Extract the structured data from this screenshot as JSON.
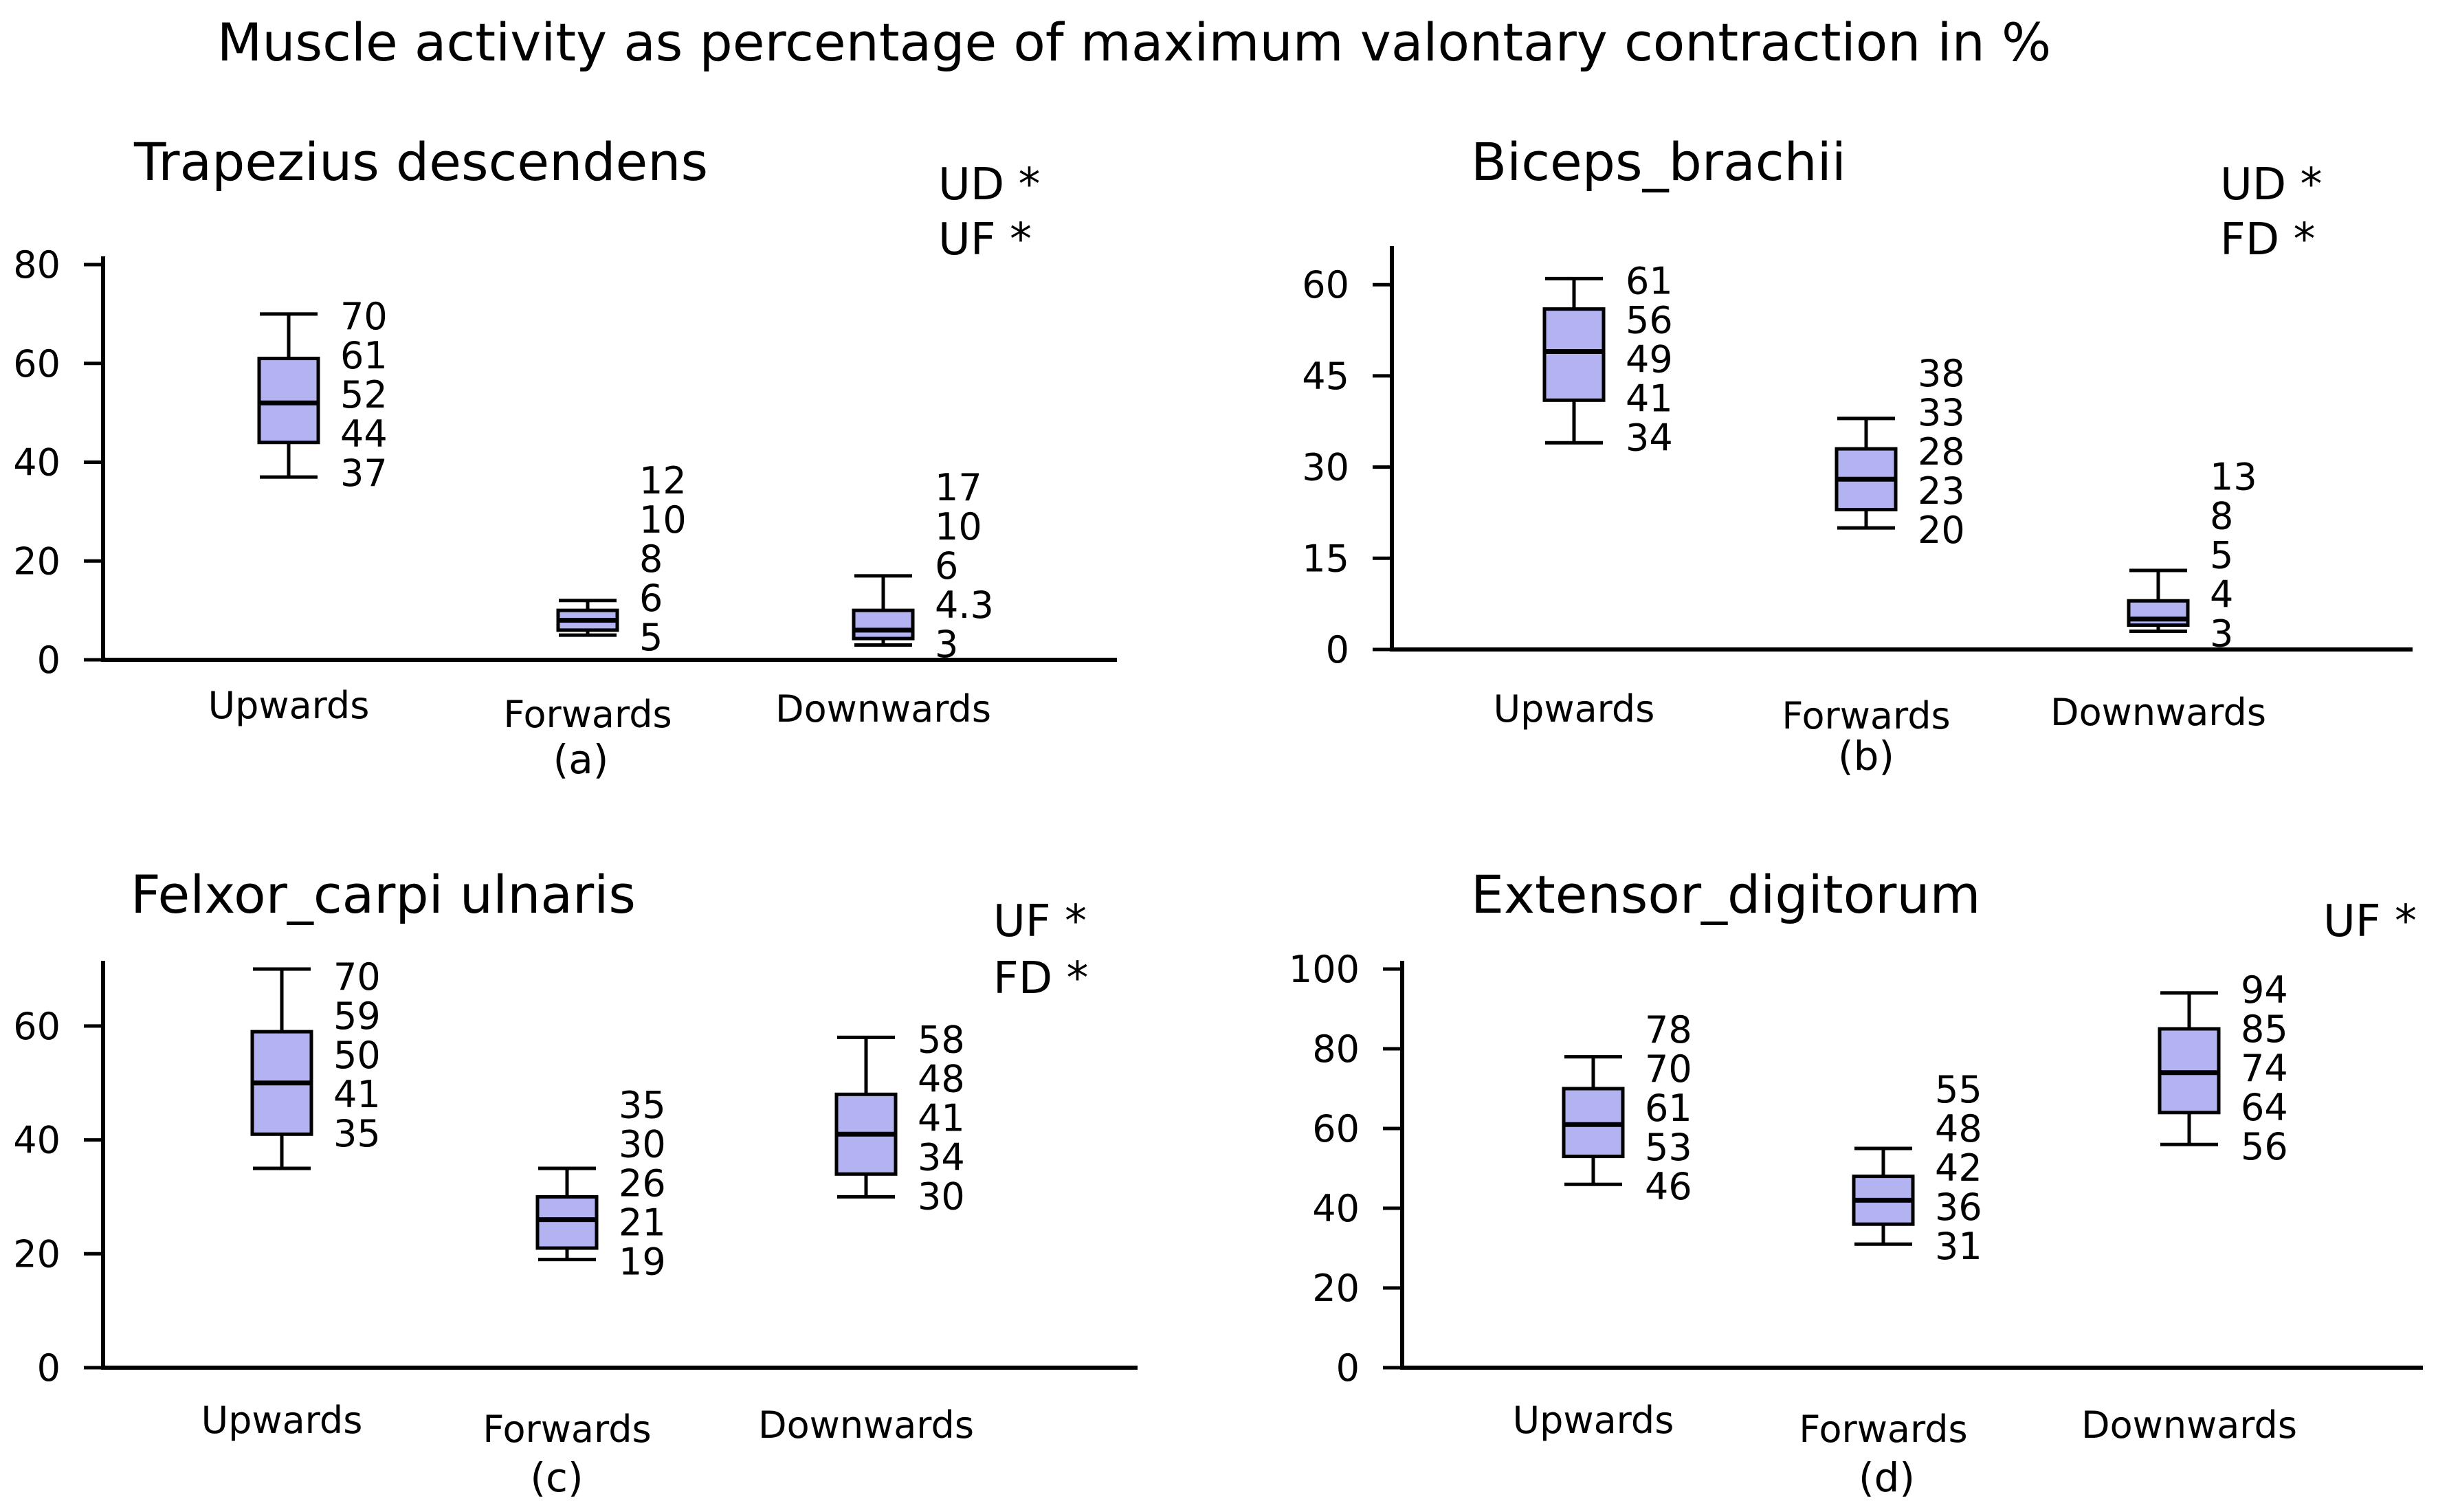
{
  "title": "Muscle activity as percentage of maximum valontary contraction in %",
  "colors": {
    "box_fill": "#b3b3f2",
    "line": "#000000"
  },
  "chart_data": [
    {
      "type": "box",
      "title": "Trapezius descendens",
      "caption": "(a)",
      "significance": [
        "UD *",
        "UF *"
      ],
      "categories": [
        "Upwards",
        "Forwards",
        "Downwards"
      ],
      "yticks": [
        0,
        20,
        40,
        60,
        80
      ],
      "ylim": [
        0,
        80
      ],
      "boxes": [
        {
          "category": "Upwards",
          "max": 70,
          "q3": 61,
          "median": 52,
          "q1": 44,
          "min": 37,
          "labels": [
            "70",
            "61",
            "52",
            "44",
            "37"
          ]
        },
        {
          "category": "Forwards",
          "max": 12,
          "q3": 10,
          "median": 8,
          "q1": 6,
          "min": 5,
          "labels": [
            "12",
            "10",
            "8",
            "6",
            "5"
          ]
        },
        {
          "category": "Downwards",
          "max": 17,
          "q3": 10,
          "median": 6,
          "q1": 4.3,
          "min": 3,
          "labels": [
            "17",
            "10",
            "6",
            "4.3",
            "3"
          ]
        }
      ]
    },
    {
      "type": "box",
      "title": "Biceps_brachii",
      "caption": "(b)",
      "significance": [
        "UD *",
        "FD  *"
      ],
      "categories": [
        "Upwards",
        "Forwards",
        "Downwards"
      ],
      "yticks": [
        0,
        15,
        30,
        45,
        60
      ],
      "ylim": [
        0,
        65
      ],
      "boxes": [
        {
          "category": "Upwards",
          "max": 61,
          "q3": 56,
          "median": 49,
          "q1": 41,
          "min": 34,
          "labels": [
            "61",
            "56",
            "49",
            "41",
            "34"
          ]
        },
        {
          "category": "Forwards",
          "max": 38,
          "q3": 33,
          "median": 28,
          "q1": 23,
          "min": 20,
          "labels": [
            "38",
            "33",
            "28",
            "23",
            "20"
          ]
        },
        {
          "category": "Downwards",
          "max": 13,
          "q3": 8,
          "median": 5,
          "q1": 4,
          "min": 3,
          "labels": [
            "13",
            "8",
            "5",
            "4",
            "3"
          ]
        }
      ]
    },
    {
      "type": "box",
      "title": "Felxor_carpi ulnaris",
      "caption": "(c)",
      "significance": [
        "UF *",
        "FD *"
      ],
      "categories": [
        "Upwards",
        "Forwards",
        "Downwards"
      ],
      "yticks": [
        0,
        20,
        40,
        60
      ],
      "ylim": [
        0,
        70
      ],
      "boxes": [
        {
          "category": "Upwards",
          "max": 70,
          "q3": 59,
          "median": 50,
          "q1": 41,
          "min": 35,
          "labels": [
            "70",
            "59",
            "50",
            "41",
            "35"
          ]
        },
        {
          "category": "Forwards",
          "max": 35,
          "q3": 30,
          "median": 26,
          "q1": 21,
          "min": 19,
          "labels": [
            "35",
            "30",
            "26",
            "21",
            "19"
          ]
        },
        {
          "category": "Downwards",
          "max": 58,
          "q3": 48,
          "median": 41,
          "q1": 34,
          "min": 30,
          "labels": [
            "58",
            "48",
            "41",
            "34",
            "30"
          ]
        }
      ]
    },
    {
      "type": "box",
      "title": "Extensor_digitorum",
      "caption": "(d)",
      "significance": [
        "UF *"
      ],
      "categories": [
        "Upwards",
        "Forwards",
        "Downwards"
      ],
      "yticks": [
        0,
        20,
        40,
        60,
        80,
        100
      ],
      "ylim": [
        0,
        100
      ],
      "boxes": [
        {
          "category": "Upwards",
          "max": 78,
          "q3": 70,
          "median": 61,
          "q1": 53,
          "min": 46,
          "labels": [
            "78",
            "70",
            "61",
            "53",
            "46"
          ]
        },
        {
          "category": "Forwards",
          "max": 55,
          "q3": 48,
          "median": 42,
          "q1": 36,
          "min": 31,
          "labels": [
            "55",
            "48",
            "42",
            "36",
            "31"
          ]
        },
        {
          "category": "Downwards",
          "max": 94,
          "q3": 85,
          "median": 74,
          "q1": 64,
          "min": 56,
          "labels": [
            "94",
            "85",
            "74",
            "64",
            "56"
          ]
        }
      ]
    }
  ]
}
